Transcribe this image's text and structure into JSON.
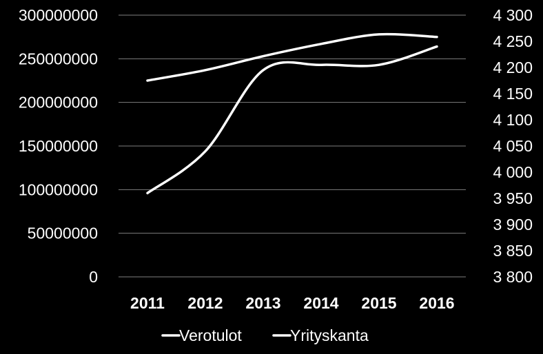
{
  "chart_data": {
    "type": "line",
    "title": "",
    "categories": [
      "2011",
      "2012",
      "2013",
      "2014",
      "2015",
      "2016"
    ],
    "series": [
      {
        "name": "Verotulot",
        "axis": "left",
        "values": [
          225000000,
          237000000,
          253000000,
          267000000,
          278000000,
          275000000
        ],
        "color": "#ffffff"
      },
      {
        "name": "Yrityskanta",
        "axis": "right",
        "values": [
          3960,
          4040,
          4195,
          4205,
          4205,
          4240
        ],
        "color": "#ffffff"
      }
    ],
    "y_left": {
      "min": 0,
      "max": 300000000,
      "ticks": [
        "0",
        "50000000",
        "100000000",
        "150000000",
        "200000000",
        "250000000",
        "300000000"
      ]
    },
    "y_right": {
      "min": 3800,
      "max": 4300,
      "ticks": [
        "3 800",
        "3 850",
        "3 900",
        "3 950",
        "4 000",
        "4 050",
        "4 100",
        "4 150",
        "4 200",
        "4 250",
        "4 300"
      ]
    },
    "grid": true,
    "legend_position": "bottom",
    "background": "#000000",
    "grid_color": "#7f7f7f"
  }
}
